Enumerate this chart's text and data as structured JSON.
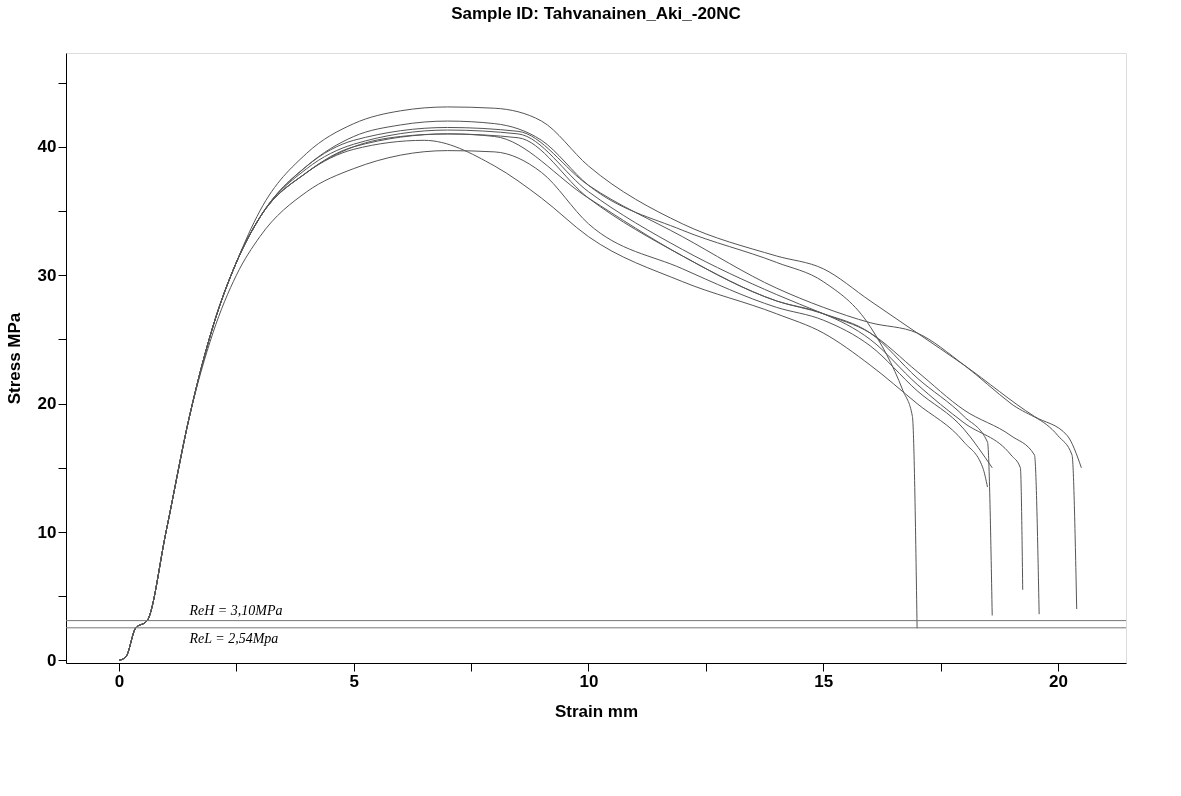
{
  "chart_data": {
    "type": "line",
    "title": "Sample ID: Tahvanainen_Aki_-20NC",
    "xlabel": "Strain mm",
    "ylabel": "Stress MPa",
    "xlim": [
      -1.13,
      21.45
    ],
    "ylim": [
      -0.2,
      47.3
    ],
    "xticks": [
      0,
      {
        "value": 2.5,
        "label": null
      },
      5,
      {
        "value": 7.5,
        "label": null
      },
      10,
      {
        "value": 12.5,
        "label": null
      },
      15,
      {
        "value": 17.5,
        "label": null
      },
      20
    ],
    "yticks": [
      0,
      {
        "value": 5,
        "label": null
      },
      10,
      {
        "value": 15,
        "label": null
      },
      20,
      {
        "value": 25,
        "label": null
      },
      30,
      {
        "value": 35,
        "label": null
      },
      40,
      {
        "value": 45,
        "label": null
      }
    ],
    "grid": false,
    "legend": false,
    "marker": "none",
    "line_style": "solid",
    "series": [
      {
        "color": "#555555",
        "x": [
          0,
          0.15,
          0.35,
          0.6,
          1,
          1.5,
          2,
          2.5,
          3,
          4,
          5,
          6,
          7,
          8,
          9,
          10,
          12,
          14,
          15,
          16,
          17,
          18,
          19.5,
          20.2,
          20.5
        ],
        "values": [
          0,
          0.3,
          2.5,
          3.1,
          10,
          19,
          26,
          31,
          35,
          39.5,
          41.8,
          42.8,
          43.1,
          43,
          42,
          38.5,
          34,
          31.5,
          30.5,
          28,
          25.5,
          23,
          19,
          17.5,
          15
        ]
      },
      {
        "color": "#555555",
        "x": [
          0,
          0.15,
          0.35,
          0.6,
          1,
          1.5,
          2,
          2.5,
          3,
          4,
          5,
          6,
          7,
          8,
          9,
          10,
          12,
          14,
          15,
          16,
          16.7,
          16.9,
          17.0
        ],
        "values": [
          0,
          0.3,
          2.5,
          3.1,
          10,
          19,
          26,
          31,
          34.5,
          38.5,
          40.8,
          41.7,
          42,
          41.8,
          40.5,
          37,
          33.5,
          31,
          29.5,
          26,
          21,
          19,
          2.5
        ]
      },
      {
        "color": "#555555",
        "x": [
          0,
          0.15,
          0.35,
          0.6,
          1,
          1.5,
          2,
          2.5,
          3,
          4,
          5,
          6,
          7,
          8,
          10,
          12,
          14,
          15,
          16,
          17,
          18,
          18.5,
          18.6
        ],
        "values": [
          0,
          0.3,
          2.5,
          3.1,
          10,
          19,
          26,
          31,
          34.5,
          38,
          40,
          40.8,
          41,
          40.8,
          36,
          31.5,
          28,
          27,
          25.5,
          22,
          19,
          17,
          3.5
        ]
      },
      {
        "color": "#555555",
        "x": [
          0,
          0.15,
          0.35,
          0.6,
          1,
          1.5,
          2,
          2.5,
          3,
          4,
          5,
          6.5,
          8,
          9,
          10,
          12,
          14,
          15,
          16,
          17,
          18,
          18.4,
          18.5
        ],
        "values": [
          0,
          0.3,
          2.5,
          3.1,
          10,
          19,
          26,
          31,
          34.5,
          38,
          39.8,
          40.5,
          38.5,
          36,
          33,
          29.5,
          27,
          25.5,
          23,
          20,
          17,
          15,
          13.5
        ]
      },
      {
        "color": "#555555",
        "x": [
          0,
          0.15,
          0.35,
          0.6,
          1,
          1.5,
          2,
          2.5,
          3,
          4,
          5,
          7,
          8,
          9,
          10,
          12,
          14,
          15,
          16,
          17,
          18,
          18.6
        ],
        "values": [
          0,
          0.3,
          2.5,
          3.1,
          10,
          19,
          25.5,
          30,
          33,
          36.5,
          38.3,
          39.7,
          39.6,
          38,
          34,
          30.5,
          27.5,
          26.5,
          24.5,
          21,
          18,
          15
        ]
      },
      {
        "color": "#555555",
        "x": [
          0,
          0.15,
          0.35,
          0.6,
          1,
          1.5,
          2,
          2.5,
          3,
          4,
          5,
          7,
          8.5,
          10,
          12,
          14,
          15,
          16,
          17,
          18,
          19,
          20,
          20.3,
          20.4
        ],
        "values": [
          0,
          0.3,
          2.5,
          3.1,
          10,
          19,
          26,
          31,
          34.5,
          38.5,
          40.5,
          41.5,
          41.2,
          37,
          33,
          29,
          27.5,
          26.3,
          25.5,
          23,
          20,
          17.5,
          16,
          4
        ]
      },
      {
        "color": "#555555",
        "x": [
          0,
          0.15,
          0.35,
          0.6,
          1,
          1.5,
          2,
          2.5,
          3,
          4,
          5,
          7,
          8.5,
          10,
          12,
          14,
          15,
          16,
          17,
          18,
          19,
          19.5,
          19.6
        ],
        "values": [
          0,
          0.3,
          2.5,
          3.1,
          10,
          19,
          26,
          31,
          34.5,
          38.3,
          40.2,
          41.3,
          41,
          36.5,
          32,
          28.5,
          27,
          25.5,
          22.5,
          19.5,
          17.5,
          16,
          3.6
        ]
      },
      {
        "color": "#555555",
        "x": [
          0,
          0.15,
          0.35,
          0.6,
          1,
          1.5,
          2,
          2.5,
          3,
          4,
          5,
          7,
          8.5,
          10,
          12,
          14,
          15,
          16,
          17,
          18,
          19,
          19.2,
          19.25
        ],
        "values": [
          0,
          0.3,
          2.5,
          3.1,
          10,
          19,
          26,
          31,
          34.5,
          38,
          40,
          41,
          40.7,
          36,
          31.5,
          28,
          27,
          25,
          21.5,
          18.5,
          16,
          15,
          5.5
        ]
      }
    ],
    "ref_lines": [
      {
        "axis": "y",
        "value": 3.1,
        "label": "ReH = 3,10MPa",
        "color": "#777777"
      },
      {
        "axis": "y",
        "value": 2.54,
        "label": "ReL = 2,54Mpa",
        "color": "#777777"
      }
    ]
  }
}
